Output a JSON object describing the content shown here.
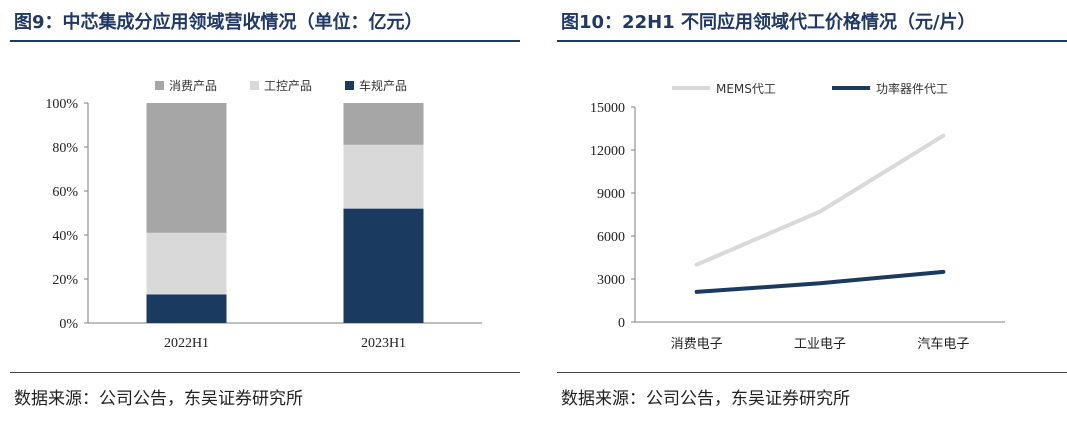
{
  "left": {
    "title": "图9：中芯集成分应用领域营收情况（单位：亿元）",
    "source": "数据来源：公司公告，东吴证券研究所"
  },
  "right": {
    "title": "图10：22H1 不同应用领域代工价格情况（元/片）",
    "source": "数据来源：公司公告，东吴证券研究所"
  },
  "chart_data": [
    {
      "type": "bar",
      "stacked": true,
      "percent": true,
      "categories": [
        "2022H1",
        "2023H1"
      ],
      "series": [
        {
          "name": "车规产品",
          "values": [
            13,
            52
          ],
          "color": "#1a3a5f"
        },
        {
          "name": "工控产品",
          "values": [
            28,
            29
          ],
          "color": "#d9d9d9"
        },
        {
          "name": "消费产品",
          "values": [
            59,
            19
          ],
          "color": "#a6a6a6"
        }
      ],
      "legend_order": [
        "消费产品",
        "工控产品",
        "车规产品"
      ],
      "yticks": [
        "0%",
        "20%",
        "40%",
        "60%",
        "80%",
        "100%"
      ],
      "ylim": [
        0,
        100
      ],
      "legend": "top",
      "grid": false
    },
    {
      "type": "line",
      "categories": [
        "消费电子",
        "工业电子",
        "汽车电子"
      ],
      "series": [
        {
          "name": "MEMS代工",
          "values": [
            4000,
            7700,
            13000
          ],
          "color": "#d9d9d9"
        },
        {
          "name": "功率器件代工",
          "values": [
            2100,
            2700,
            3500
          ],
          "color": "#1a3a5f"
        }
      ],
      "yticks": [
        "0",
        "3000",
        "6000",
        "9000",
        "12000",
        "15000"
      ],
      "ylim": [
        0,
        15000
      ],
      "legend": "top",
      "grid": false
    }
  ]
}
